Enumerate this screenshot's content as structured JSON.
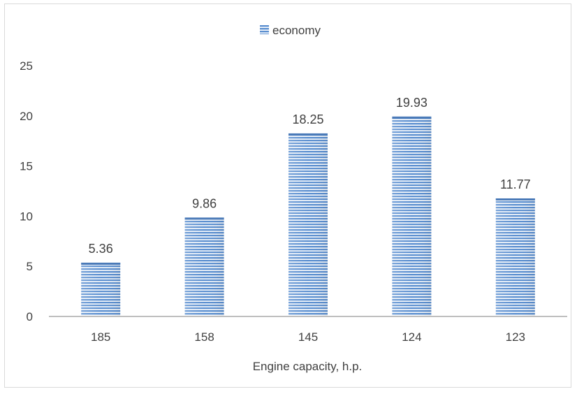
{
  "chart_data": {
    "type": "bar",
    "title": "",
    "xlabel": "Engine capacity, h.p.",
    "ylabel": "",
    "categories": [
      "185",
      "158",
      "145",
      "124",
      "123"
    ],
    "series": [
      {
        "name": "economy",
        "values": [
          5.36,
          9.86,
          18.25,
          19.93,
          11.77
        ],
        "color": "#5b8fd0"
      }
    ],
    "data_labels": [
      "5.36",
      "9.86",
      "18.25",
      "19.93",
      "11.77"
    ],
    "ylim": [
      0,
      25
    ],
    "yticks": [
      "0",
      "5",
      "10",
      "15",
      "20",
      "25"
    ],
    "grid": false,
    "legend_position": "top"
  }
}
